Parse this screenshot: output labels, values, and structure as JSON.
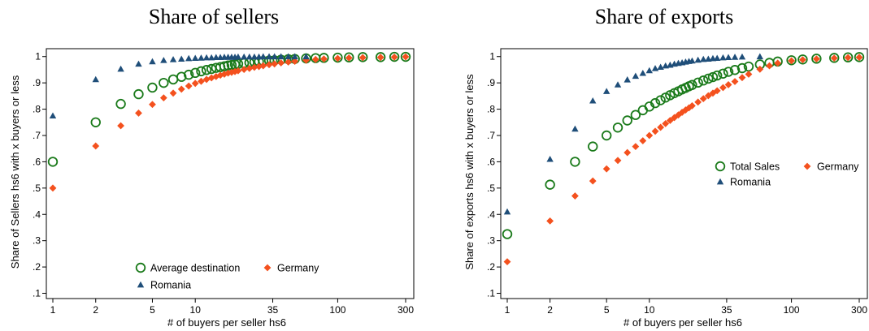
{
  "colors": {
    "green": "#1a7a1a",
    "orange": "#f4511e",
    "navy": "#1f4e79"
  },
  "chart_data": [
    {
      "type": "scatter",
      "title": "Share of sellers",
      "xlabel": "# of buyers per seller hs6",
      "ylabel": "Share of Sellers hs6 with x buyers or less",
      "xscale": "log",
      "xlim": [
        1,
        300
      ],
      "ylim": [
        0.08,
        1.03
      ],
      "xticks": [
        1,
        2,
        5,
        10,
        35,
        100,
        300
      ],
      "xtick_labels": [
        "1",
        "2",
        "5",
        "10",
        "35",
        "100",
        "300"
      ],
      "yticks": [
        0.1,
        0.2,
        0.3,
        0.4,
        0.5,
        0.6,
        0.7,
        0.8,
        0.9,
        1.0
      ],
      "ytick_labels": [
        ".1",
        ".2",
        ".3",
        ".4",
        ".5",
        ".6",
        ".7",
        ".8",
        ".9",
        "1"
      ],
      "legend_position": "bottom",
      "series": [
        {
          "name": "Average destination",
          "marker": "circle",
          "color": "#1a7a1a",
          "x": [
            1,
            2,
            3,
            4,
            5,
            6,
            7,
            8,
            9,
            10,
            11,
            12,
            13,
            14,
            15,
            16,
            17,
            18,
            19,
            20,
            22,
            24,
            26,
            28,
            30,
            33,
            36,
            40,
            45,
            50,
            60,
            70,
            80,
            100,
            120,
            150,
            200,
            250,
            300
          ],
          "y": [
            0.6,
            0.75,
            0.82,
            0.857,
            0.882,
            0.9,
            0.913,
            0.923,
            0.931,
            0.938,
            0.944,
            0.949,
            0.953,
            0.957,
            0.96,
            0.963,
            0.966,
            0.968,
            0.97,
            0.972,
            0.975,
            0.977,
            0.979,
            0.981,
            0.983,
            0.985,
            0.986,
            0.988,
            0.99,
            0.991,
            0.993,
            0.994,
            0.995,
            0.996,
            0.997,
            0.998,
            0.998,
            0.999,
            0.999
          ]
        },
        {
          "name": "Germany",
          "marker": "diamond",
          "color": "#f4511e",
          "x": [
            1,
            2,
            3,
            4,
            5,
            6,
            7,
            8,
            9,
            10,
            11,
            12,
            13,
            14,
            15,
            16,
            17,
            18,
            19,
            20,
            22,
            24,
            26,
            28,
            30,
            33,
            36,
            40,
            45,
            50,
            60,
            70,
            80,
            100,
            120,
            150,
            200,
            250,
            300
          ],
          "y": [
            0.5,
            0.66,
            0.737,
            0.785,
            0.818,
            0.843,
            0.861,
            0.876,
            0.888,
            0.898,
            0.906,
            0.913,
            0.919,
            0.924,
            0.929,
            0.933,
            0.937,
            0.94,
            0.943,
            0.946,
            0.951,
            0.955,
            0.959,
            0.962,
            0.965,
            0.969,
            0.972,
            0.976,
            0.979,
            0.982,
            0.986,
            0.989,
            0.991,
            0.993,
            0.995,
            0.996,
            0.997,
            0.998,
            0.999
          ]
        },
        {
          "name": "Romania",
          "marker": "triangle",
          "color": "#1f4e79",
          "x": [
            1,
            2,
            3,
            4,
            5,
            6,
            7,
            8,
            9,
            10,
            11,
            12,
            13,
            14,
            15,
            16,
            17,
            18,
            19,
            20,
            22,
            24,
            26,
            28,
            30,
            33,
            36,
            40,
            45,
            50,
            60
          ],
          "y": [
            0.775,
            0.913,
            0.953,
            0.972,
            0.981,
            0.986,
            0.989,
            0.991,
            0.993,
            0.994,
            0.995,
            0.996,
            0.996,
            0.997,
            0.997,
            0.998,
            0.998,
            0.998,
            0.998,
            0.999,
            0.999,
            0.999,
            0.999,
            0.999,
            1.0,
            1.0,
            1.0,
            1.0,
            1.0,
            1.0,
            1.0
          ]
        }
      ]
    },
    {
      "type": "scatter",
      "title": "Share of exports",
      "xlabel": "# of buyers per seller hs6",
      "ylabel": "Share of exports hs6 with x buyers or less",
      "xscale": "log",
      "xlim": [
        1,
        300
      ],
      "ylim": [
        0.08,
        1.03
      ],
      "xticks": [
        1,
        2,
        5,
        10,
        35,
        100,
        300
      ],
      "xtick_labels": [
        "1",
        "2",
        "5",
        "10",
        "35",
        "100",
        "300"
      ],
      "yticks": [
        0.1,
        0.2,
        0.3,
        0.4,
        0.5,
        0.6,
        0.7,
        0.8,
        0.9,
        1.0
      ],
      "ytick_labels": [
        ".1",
        ".2",
        ".3",
        ".4",
        ".5",
        ".6",
        ".7",
        ".8",
        ".9",
        "1"
      ],
      "legend_position": "right",
      "series": [
        {
          "name": "Total Sales",
          "marker": "circle",
          "color": "#1a7a1a",
          "x": [
            1,
            2,
            3,
            4,
            5,
            6,
            7,
            8,
            9,
            10,
            11,
            12,
            13,
            14,
            15,
            16,
            17,
            18,
            19,
            20,
            22,
            24,
            26,
            28,
            30,
            33,
            36,
            40,
            45,
            50,
            60,
            70,
            80,
            100,
            120,
            150,
            200,
            250,
            300
          ],
          "y": [
            0.325,
            0.513,
            0.6,
            0.658,
            0.7,
            0.73,
            0.757,
            0.778,
            0.796,
            0.81,
            0.823,
            0.834,
            0.844,
            0.853,
            0.861,
            0.868,
            0.875,
            0.881,
            0.887,
            0.892,
            0.901,
            0.909,
            0.916,
            0.922,
            0.928,
            0.935,
            0.942,
            0.949,
            0.956,
            0.962,
            0.97,
            0.976,
            0.981,
            0.986,
            0.989,
            0.992,
            0.995,
            0.997,
            0.998
          ]
        },
        {
          "name": "Germany",
          "marker": "diamond",
          "color": "#f4511e",
          "x": [
            1,
            2,
            3,
            4,
            5,
            6,
            7,
            8,
            9,
            10,
            11,
            12,
            13,
            14,
            15,
            16,
            17,
            18,
            19,
            20,
            22,
            24,
            26,
            28,
            30,
            33,
            36,
            40,
            45,
            50,
            60,
            70,
            80,
            100,
            120,
            150,
            200,
            250,
            300
          ],
          "y": [
            0.22,
            0.375,
            0.47,
            0.527,
            0.573,
            0.605,
            0.635,
            0.658,
            0.68,
            0.7,
            0.716,
            0.731,
            0.745,
            0.757,
            0.768,
            0.778,
            0.788,
            0.797,
            0.805,
            0.813,
            0.827,
            0.84,
            0.851,
            0.861,
            0.87,
            0.882,
            0.893,
            0.905,
            0.92,
            0.933,
            0.952,
            0.965,
            0.975,
            0.984,
            0.988,
            0.991,
            0.994,
            0.996,
            0.997
          ]
        },
        {
          "name": "Romania",
          "marker": "triangle",
          "color": "#1f4e79",
          "x": [
            1,
            2,
            3,
            4,
            5,
            6,
            7,
            8,
            9,
            10,
            11,
            12,
            13,
            14,
            15,
            16,
            17,
            18,
            19,
            20,
            22,
            24,
            26,
            28,
            30,
            33,
            36,
            40,
            45,
            60
          ],
          "y": [
            0.41,
            0.61,
            0.725,
            0.832,
            0.868,
            0.893,
            0.912,
            0.926,
            0.937,
            0.947,
            0.955,
            0.96,
            0.965,
            0.968,
            0.972,
            0.975,
            0.977,
            0.98,
            0.982,
            0.984,
            0.987,
            0.99,
            0.991,
            0.993,
            0.994,
            0.996,
            0.997,
            0.998,
            0.999,
            1.0
          ]
        }
      ]
    }
  ]
}
